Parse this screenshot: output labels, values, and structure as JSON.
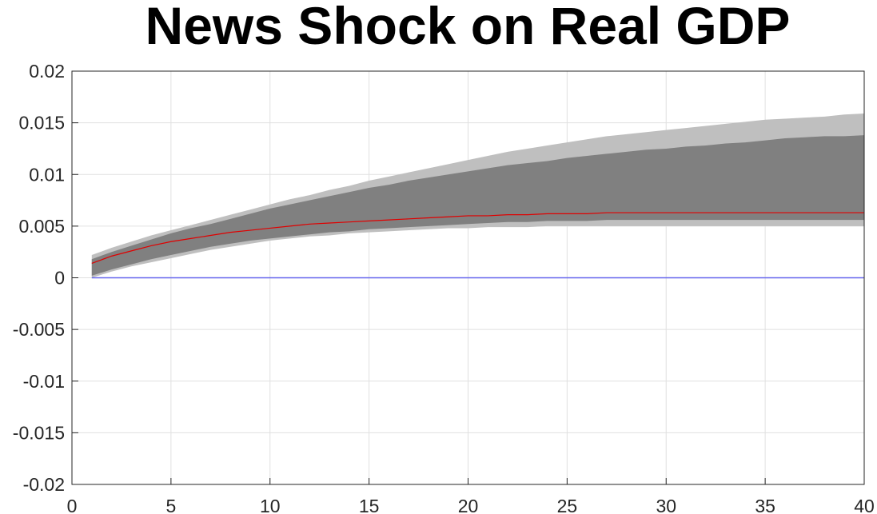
{
  "chart_data": {
    "type": "area",
    "title": "News Shock on Real GDP",
    "xlabel": "",
    "ylabel": "",
    "xlim": [
      0,
      40
    ],
    "ylim": [
      -0.02,
      0.02
    ],
    "grid": true,
    "xticks": [
      0,
      5,
      10,
      15,
      20,
      25,
      30,
      35,
      40
    ],
    "xtick_labels": [
      "0",
      "5",
      "10",
      "15",
      "20",
      "25",
      "30",
      "35",
      "40"
    ],
    "yticks": [
      0.02,
      0.015,
      0.01,
      0.005,
      0,
      -0.005,
      -0.01,
      -0.015,
      -0.02
    ],
    "ytick_labels": [
      "0.02",
      "0.015",
      "0.01",
      "0.005",
      "0",
      "-0.005",
      "-0.01",
      "-0.015",
      "-0.02"
    ],
    "x": [
      1,
      2,
      3,
      4,
      5,
      6,
      7,
      8,
      9,
      10,
      11,
      12,
      13,
      14,
      15,
      16,
      17,
      18,
      19,
      20,
      21,
      22,
      23,
      24,
      25,
      26,
      27,
      28,
      29,
      30,
      31,
      32,
      33,
      34,
      35,
      36,
      37,
      38,
      39,
      40
    ],
    "series": [
      {
        "role": "outer-band-upper",
        "color": "#bfbfbf",
        "values": [
          0.0022,
          0.0029,
          0.0035,
          0.0041,
          0.0046,
          0.0051,
          0.0056,
          0.0061,
          0.0066,
          0.0071,
          0.0076,
          0.008,
          0.0085,
          0.0089,
          0.0094,
          0.0098,
          0.0102,
          0.0106,
          0.011,
          0.0114,
          0.0118,
          0.0122,
          0.0125,
          0.0128,
          0.0131,
          0.0134,
          0.0137,
          0.0139,
          0.0141,
          0.0143,
          0.0145,
          0.0147,
          0.0149,
          0.0151,
          0.0153,
          0.0154,
          0.0155,
          0.0156,
          0.0158,
          0.0159
        ]
      },
      {
        "role": "inner-band-upper",
        "color": "#808080",
        "values": [
          0.0018,
          0.0025,
          0.0031,
          0.0037,
          0.0043,
          0.0048,
          0.0052,
          0.0057,
          0.0062,
          0.0067,
          0.0071,
          0.0075,
          0.0079,
          0.0083,
          0.0087,
          0.009,
          0.0094,
          0.0097,
          0.01,
          0.0103,
          0.0106,
          0.0109,
          0.0111,
          0.0113,
          0.0116,
          0.0118,
          0.012,
          0.0122,
          0.0124,
          0.0125,
          0.0127,
          0.0128,
          0.013,
          0.0131,
          0.0133,
          0.0135,
          0.0136,
          0.0137,
          0.0137,
          0.0138
        ]
      },
      {
        "role": "median",
        "color": "#e00000",
        "values": [
          0.0014,
          0.0021,
          0.0026,
          0.0031,
          0.0035,
          0.0038,
          0.0041,
          0.0044,
          0.0046,
          0.0048,
          0.005,
          0.0052,
          0.0053,
          0.0054,
          0.0055,
          0.0056,
          0.0057,
          0.0058,
          0.0059,
          0.006,
          0.006,
          0.0061,
          0.0061,
          0.0062,
          0.0062,
          0.0062,
          0.0063,
          0.0063,
          0.0063,
          0.0063,
          0.0063,
          0.0063,
          0.0063,
          0.0063,
          0.0063,
          0.0063,
          0.0063,
          0.0063,
          0.0063,
          0.0063
        ]
      },
      {
        "role": "inner-band-lower",
        "color": "#808080",
        "values": [
          0.0002,
          0.0008,
          0.0013,
          0.0018,
          0.0022,
          0.0026,
          0.003,
          0.0033,
          0.0036,
          0.0038,
          0.004,
          0.0042,
          0.0044,
          0.0045,
          0.0047,
          0.0048,
          0.0049,
          0.005,
          0.0051,
          0.0052,
          0.0053,
          0.0054,
          0.0054,
          0.0055,
          0.0055,
          0.0055,
          0.0056,
          0.0056,
          0.0056,
          0.0056,
          0.0056,
          0.0056,
          0.0056,
          0.0056,
          0.0056,
          0.0056,
          0.0056,
          0.0056,
          0.0056,
          0.0056
        ]
      },
      {
        "role": "outer-band-lower",
        "color": "#bfbfbf",
        "values": [
          0.0,
          0.0006,
          0.0011,
          0.0015,
          0.0019,
          0.0023,
          0.0027,
          0.003,
          0.0033,
          0.0036,
          0.0038,
          0.004,
          0.0041,
          0.0043,
          0.0044,
          0.0045,
          0.0046,
          0.0047,
          0.0048,
          0.0048,
          0.0049,
          0.0049,
          0.0049,
          0.005,
          0.005,
          0.005,
          0.005,
          0.005,
          0.005,
          0.005,
          0.005,
          0.005,
          0.005,
          0.005,
          0.005,
          0.005,
          0.005,
          0.005,
          0.005,
          0.005
        ]
      },
      {
        "role": "zero-line",
        "color": "#6666ee",
        "values": [
          0,
          0,
          0,
          0,
          0,
          0,
          0,
          0,
          0,
          0,
          0,
          0,
          0,
          0,
          0,
          0,
          0,
          0,
          0,
          0,
          0,
          0,
          0,
          0,
          0,
          0,
          0,
          0,
          0,
          0,
          0,
          0,
          0,
          0,
          0,
          0,
          0,
          0,
          0,
          0
        ]
      }
    ]
  }
}
